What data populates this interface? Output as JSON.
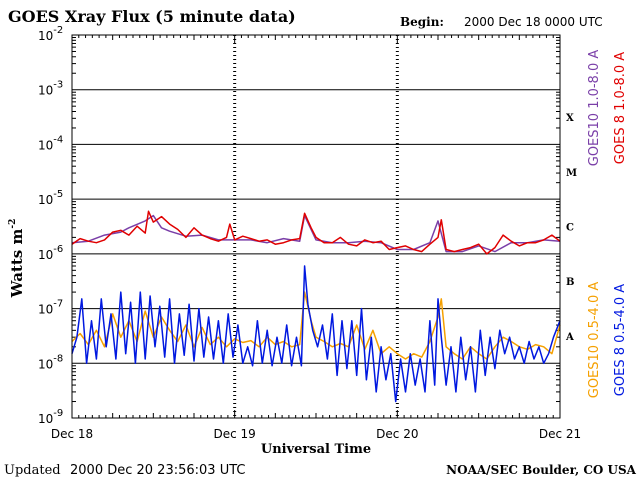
{
  "header": {
    "title": "GOES Xray Flux (5 minute data)",
    "begin_label": "Begin:",
    "begin_value": "2000 Dec 18 0000 UTC"
  },
  "footer": {
    "updated_label": "Updated",
    "updated_value": "2000 Dec 20 23:56:03 UTC",
    "credit": "NOAA/SEC Boulder, CO USA"
  },
  "colors": {
    "goes10_long": "#7a3fa8",
    "goes8_long": "#e00000",
    "goes10_short": "#f5a000",
    "goes8_short": "#0018e0",
    "grid": "#000000"
  },
  "chart_data": {
    "type": "line",
    "title": "GOES Xray Flux (5 minute data)",
    "xlabel": "Universal Time",
    "ylabel": "Watts m",
    "ylabel_sup": "-2",
    "y_scale": "log",
    "ylim": [
      1e-09,
      0.01
    ],
    "y_ticks": [
      {
        "base": "10",
        "exp": "-2"
      },
      {
        "base": "10",
        "exp": "-3"
      },
      {
        "base": "10",
        "exp": "-4"
      },
      {
        "base": "10",
        "exp": "-5"
      },
      {
        "base": "10",
        "exp": "-6"
      },
      {
        "base": "10",
        "exp": "-7"
      },
      {
        "base": "10",
        "exp": "-8"
      },
      {
        "base": "10",
        "exp": "-9"
      }
    ],
    "x_ticks": [
      "Dec 18",
      "Dec 19",
      "Dec 20",
      "Dec 21"
    ],
    "xlim_days": [
      0,
      3
    ],
    "flare_classes": [
      "X",
      "M",
      "C",
      "B",
      "A"
    ],
    "grid": true,
    "series": [
      {
        "name": "GOES10 1.0-8.0 A",
        "color_key": "goes10_long",
        "band": "long",
        "x": [
          0,
          0.1,
          0.2,
          0.3,
          0.35,
          0.45,
          0.5,
          0.55,
          0.6,
          0.7,
          0.8,
          0.9,
          1.0,
          1.1,
          1.2,
          1.3,
          1.4,
          1.43,
          1.5,
          1.6,
          1.7,
          1.8,
          1.9,
          2.0,
          2.1,
          2.2,
          2.25,
          2.3,
          2.4,
          2.5,
          2.6,
          2.7,
          2.8,
          2.9,
          3.0
        ],
        "y": [
          1.6e-06,
          1.7e-06,
          2.2e-06,
          2.5e-06,
          3e-06,
          4e-06,
          5e-06,
          3e-06,
          2.6e-06,
          2.1e-06,
          2.2e-06,
          1.8e-06,
          1.8e-06,
          1.8e-06,
          1.6e-06,
          1.9e-06,
          1.7e-06,
          5e-06,
          1.8e-06,
          1.6e-06,
          1.6e-06,
          1.7e-06,
          1.6e-06,
          1.2e-06,
          1.2e-06,
          1.6e-06,
          4e-06,
          1.1e-06,
          1.1e-06,
          1.4e-06,
          1.1e-06,
          1.6e-06,
          1.6e-06,
          1.8e-06,
          1.7e-06
        ]
      },
      {
        "name": "GOES 8 1.0-8.0 A",
        "color_key": "goes8_long",
        "band": "long",
        "x": [
          0,
          0.05,
          0.1,
          0.15,
          0.2,
          0.25,
          0.3,
          0.35,
          0.4,
          0.45,
          0.47,
          0.5,
          0.55,
          0.6,
          0.65,
          0.7,
          0.75,
          0.8,
          0.85,
          0.9,
          0.95,
          0.97,
          1.0,
          1.05,
          1.1,
          1.15,
          1.2,
          1.25,
          1.3,
          1.35,
          1.4,
          1.43,
          1.47,
          1.5,
          1.55,
          1.6,
          1.65,
          1.7,
          1.75,
          1.8,
          1.85,
          1.9,
          1.95,
          2.0,
          2.05,
          2.1,
          2.15,
          2.2,
          2.25,
          2.27,
          2.3,
          2.35,
          2.4,
          2.45,
          2.5,
          2.55,
          2.6,
          2.65,
          2.7,
          2.75,
          2.8,
          2.85,
          2.9,
          2.95,
          3.0
        ],
        "y": [
          1.5e-06,
          1.9e-06,
          1.7e-06,
          1.6e-06,
          1.8e-06,
          2.5e-06,
          2.7e-06,
          2.2e-06,
          3.2e-06,
          2.4e-06,
          6e-06,
          3.8e-06,
          4.8e-06,
          3.5e-06,
          2.8e-06,
          2e-06,
          3e-06,
          2.2e-06,
          1.9e-06,
          1.7e-06,
          2e-06,
          3.5e-06,
          1.8e-06,
          2.1e-06,
          1.9e-06,
          1.7e-06,
          1.8e-06,
          1.5e-06,
          1.6e-06,
          1.8e-06,
          1.9e-06,
          5.5e-06,
          3e-06,
          2e-06,
          1.6e-06,
          1.6e-06,
          2e-06,
          1.5e-06,
          1.4e-06,
          1.8e-06,
          1.6e-06,
          1.7e-06,
          1.2e-06,
          1.3e-06,
          1.4e-06,
          1.2e-06,
          1.1e-06,
          1.5e-06,
          2e-06,
          4.2e-06,
          1.2e-06,
          1.1e-06,
          1.2e-06,
          1.3e-06,
          1.5e-06,
          1e-06,
          1.3e-06,
          2.2e-06,
          1.7e-06,
          1.4e-06,
          1.6e-06,
          1.6e-06,
          1.8e-06,
          2.2e-06,
          1.7e-06
        ]
      },
      {
        "name": "GOES10 0.5-4.0 A",
        "color_key": "goes10_short",
        "band": "short",
        "x": [
          0,
          0.05,
          0.1,
          0.15,
          0.2,
          0.25,
          0.3,
          0.35,
          0.4,
          0.45,
          0.5,
          0.55,
          0.6,
          0.65,
          0.7,
          0.75,
          0.8,
          0.85,
          0.9,
          0.95,
          1.0,
          1.05,
          1.1,
          1.15,
          1.2,
          1.25,
          1.3,
          1.35,
          1.4,
          1.43,
          1.47,
          1.5,
          1.55,
          1.6,
          1.65,
          1.7,
          1.75,
          1.8,
          1.85,
          1.9,
          1.95,
          2.0,
          2.05,
          2.1,
          2.15,
          2.2,
          2.25,
          2.27,
          2.3,
          2.35,
          2.4,
          2.45,
          2.5,
          2.55,
          2.6,
          2.65,
          2.7,
          2.75,
          2.8,
          2.85,
          2.9,
          2.95,
          3.0
        ],
        "y": [
          2.5e-08,
          3.5e-08,
          2.2e-08,
          4e-08,
          2e-08,
          8e-08,
          3e-08,
          6e-08,
          2.5e-08,
          9e-08,
          3e-08,
          7e-08,
          4e-08,
          2.5e-08,
          5e-08,
          2e-08,
          4.5e-08,
          2.2e-08,
          3e-08,
          2e-08,
          2.8e-08,
          2.4e-08,
          2.6e-08,
          2e-08,
          3e-08,
          2.2e-08,
          2.5e-08,
          2e-08,
          2.2e-08,
          2e-07,
          6e-08,
          3e-08,
          2.5e-08,
          2e-08,
          2.3e-08,
          2e-08,
          5e-08,
          1.8e-08,
          4e-08,
          1.5e-08,
          2e-08,
          1.5e-08,
          1.2e-08,
          1.5e-08,
          1.3e-08,
          2.5e-08,
          7e-08,
          1.5e-07,
          2e-08,
          1.5e-08,
          1.2e-08,
          2e-08,
          1.5e-08,
          1.2e-08,
          2e-08,
          3e-08,
          2.5e-08,
          2e-08,
          1.8e-08,
          2.2e-08,
          2e-08,
          1.5e-08,
          5e-08
        ]
      },
      {
        "name": "GOES 8 0.5-4.0 A",
        "color_key": "goes8_short",
        "band": "short",
        "x": [
          0,
          0.03,
          0.06,
          0.09,
          0.12,
          0.15,
          0.18,
          0.21,
          0.24,
          0.27,
          0.3,
          0.33,
          0.36,
          0.39,
          0.42,
          0.45,
          0.48,
          0.51,
          0.54,
          0.57,
          0.6,
          0.63,
          0.66,
          0.69,
          0.72,
          0.75,
          0.78,
          0.81,
          0.84,
          0.87,
          0.9,
          0.93,
          0.96,
          0.99,
          1.02,
          1.05,
          1.08,
          1.11,
          1.14,
          1.17,
          1.2,
          1.23,
          1.26,
          1.29,
          1.32,
          1.35,
          1.38,
          1.41,
          1.43,
          1.45,
          1.48,
          1.51,
          1.54,
          1.57,
          1.6,
          1.63,
          1.66,
          1.69,
          1.72,
          1.75,
          1.78,
          1.81,
          1.84,
          1.87,
          1.9,
          1.93,
          1.96,
          1.99,
          2.02,
          2.05,
          2.08,
          2.11,
          2.14,
          2.17,
          2.2,
          2.23,
          2.25,
          2.27,
          2.3,
          2.33,
          2.36,
          2.39,
          2.42,
          2.45,
          2.48,
          2.51,
          2.54,
          2.57,
          2.6,
          2.63,
          2.66,
          2.69,
          2.72,
          2.75,
          2.78,
          2.81,
          2.84,
          2.87,
          2.9,
          2.93,
          2.96,
          3.0
        ],
        "y": [
          1.5e-08,
          3e-08,
          1.5e-07,
          1e-08,
          6e-08,
          1.2e-08,
          1.5e-07,
          2e-08,
          8e-08,
          1.2e-08,
          2e-07,
          1.5e-08,
          1.3e-07,
          1e-08,
          2e-07,
          1.2e-08,
          1.7e-07,
          2e-08,
          1.1e-07,
          1.3e-08,
          1.5e-07,
          1e-08,
          8e-08,
          1.4e-08,
          1.2e-07,
          1.1e-08,
          1e-07,
          1.3e-08,
          7e-08,
          1.2e-08,
          6e-08,
          1e-08,
          8e-08,
          1.3e-08,
          5e-08,
          1e-08,
          2e-08,
          9e-09,
          6e-08,
          1e-08,
          4e-08,
          9e-09,
          3e-08,
          1e-08,
          5e-08,
          9e-09,
          3e-08,
          9e-09,
          6e-07,
          1.2e-07,
          4e-08,
          2e-08,
          5e-08,
          1.2e-08,
          8e-08,
          6e-09,
          6e-08,
          8e-09,
          6e-08,
          6e-09,
          1e-07,
          5e-09,
          3e-08,
          3e-09,
          2e-08,
          5e-09,
          1.5e-08,
          2e-09,
          1.2e-08,
          3e-09,
          1.5e-08,
          4e-09,
          1.2e-08,
          3e-09,
          6e-08,
          4e-09,
          1.5e-07,
          3e-08,
          4e-09,
          2e-08,
          3e-09,
          3e-08,
          5e-09,
          2e-08,
          3e-09,
          4e-08,
          6e-09,
          3e-08,
          8e-09,
          4e-08,
          1.5e-08,
          3e-08,
          1.2e-08,
          2e-08,
          1e-08,
          2.5e-08,
          1.2e-08,
          2e-08,
          1e-08,
          1.5e-08,
          3e-08,
          6e-08
        ]
      }
    ]
  }
}
